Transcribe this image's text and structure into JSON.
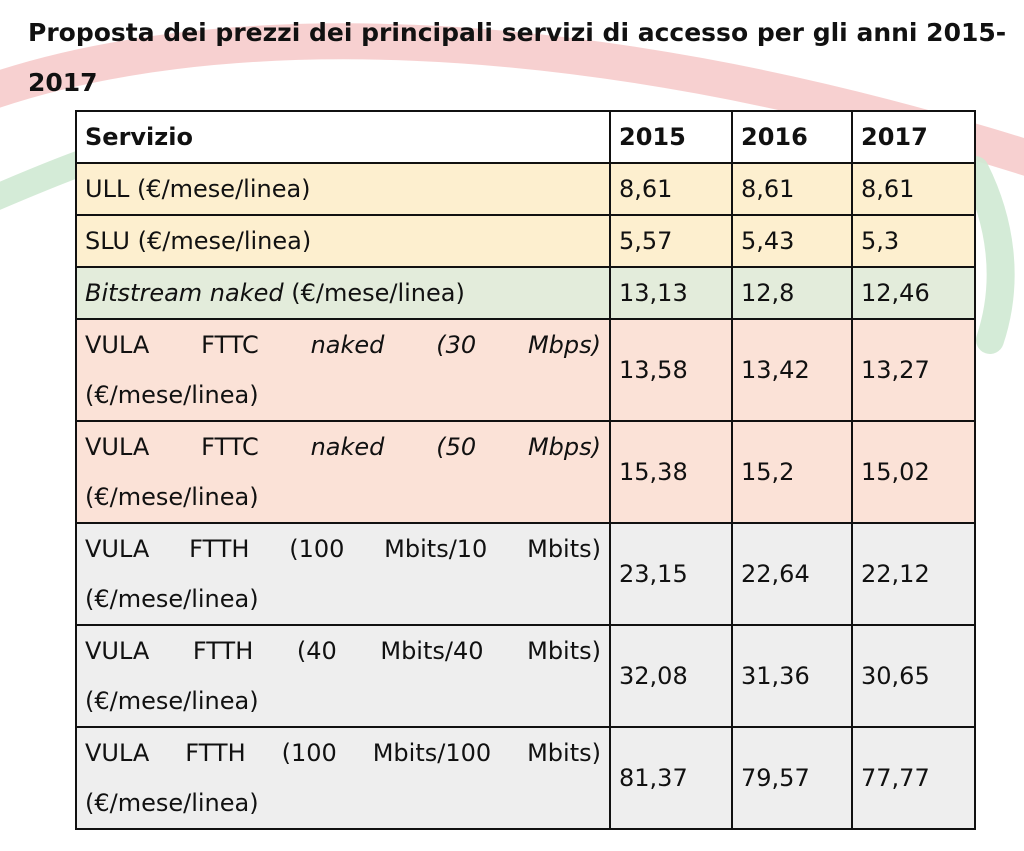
{
  "title": "Proposta dei prezzi dei principali servizi di accesso per gli anni 2015-2017",
  "colors": {
    "header_bg": "#ffffff",
    "ull_slu_bg": "#fdefcf",
    "bitstream_bg": "#e3ecdb",
    "vula_fttc_bg": "#fbe2d7",
    "vula_ftth_bg": "#eeeeee",
    "border": "#111111",
    "decor_red": "#e2363a",
    "decor_green": "#2aa64b"
  },
  "table": {
    "headers": [
      "Servizio",
      "2015",
      "2016",
      "2017"
    ],
    "rows": [
      {
        "id": "ull",
        "service": {
          "line1": "ULL (€/mese/linea)",
          "line2": ""
        },
        "values": [
          "8,61",
          "8,61",
          "8,61"
        ]
      },
      {
        "id": "slu",
        "service": {
          "line1": "SLU (€/mese/linea)",
          "line2": ""
        },
        "values": [
          "5,57",
          "5,43",
          "5,3"
        ]
      },
      {
        "id": "bitstream",
        "service": {
          "italic": "Bitstream naked",
          "rest": " (€/mese/linea)"
        },
        "values": [
          "13,13",
          "12,8",
          "12,46"
        ]
      },
      {
        "id": "vula-fttc-30",
        "service": {
          "pre": "VULA FTTC ",
          "italic": "naked (30 Mbps)",
          "line2": "(€/mese/linea)"
        },
        "values": [
          "13,58",
          "13,42",
          "13,27"
        ]
      },
      {
        "id": "vula-fttc-50",
        "service": {
          "pre": "VULA FTTC ",
          "italic": "naked (50 Mbps)",
          "line2": "(€/mese/linea)"
        },
        "values": [
          "15,38",
          "15,2",
          "15,02"
        ]
      },
      {
        "id": "vula-ftth-100-10",
        "service": {
          "line1": "VULA FTTH (100 Mbits/10 Mbits)",
          "line2": "(€/mese/linea)"
        },
        "values": [
          "23,15",
          "22,64",
          "22,12"
        ]
      },
      {
        "id": "vula-ftth-40-40",
        "service": {
          "line1": "VULA FTTH (40 Mbits/40 Mbits)",
          "line2": "(€/mese/linea)"
        },
        "values": [
          "32,08",
          "31,36",
          "30,65"
        ]
      },
      {
        "id": "vula-ftth-100-100",
        "service": {
          "line1": "VULA FTTH (100 Mbits/100 Mbits)",
          "line2": "(€/mese/linea)"
        },
        "values": [
          "81,37",
          "79,57",
          "77,77"
        ]
      }
    ]
  }
}
